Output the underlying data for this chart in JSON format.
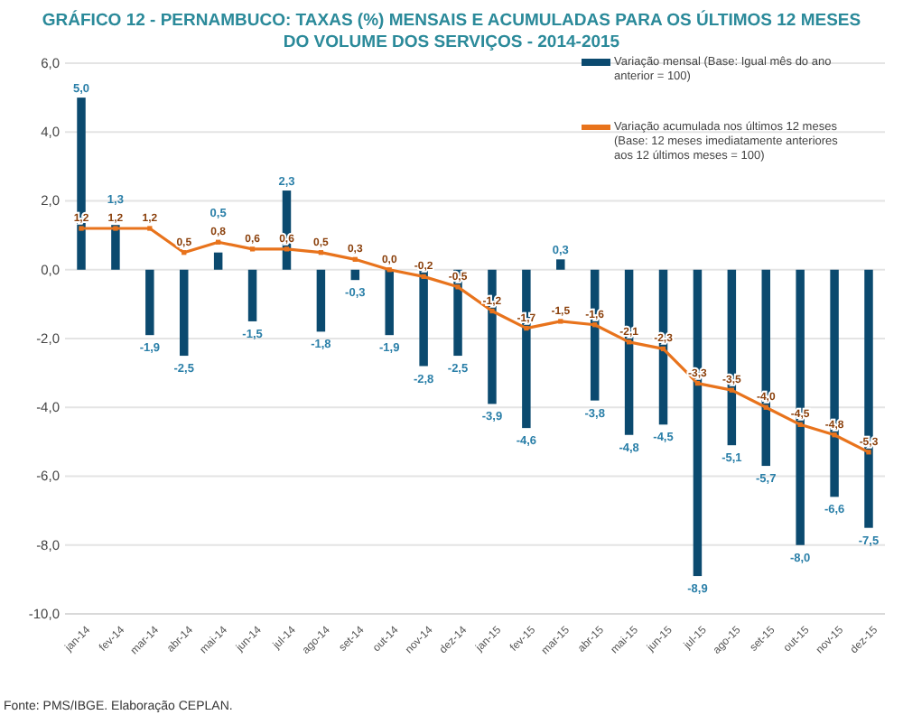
{
  "chart_data": {
    "type": "bar",
    "title": "GRÁFICO 12 - PERNAMBUCO: TAXAS (%) MENSAIS E ACUMULADAS PARA OS ÚLTIMOS 12 MESES DO VOLUME DOS SERVIÇOS - 2014-2015",
    "categories": [
      "jan-14",
      "fev-14",
      "mar-14",
      "abr-14",
      "mai-14",
      "jun-14",
      "jul-14",
      "ago-14",
      "set-14",
      "out-14",
      "nov-14",
      "dez-14",
      "jan-15",
      "fev-15",
      "mar-15",
      "abr-15",
      "mai-15",
      "jun-15",
      "jul-15",
      "ago-15",
      "set-15",
      "out-15",
      "nov-15",
      "dez-15"
    ],
    "series": [
      {
        "name": "Variação mensal (Base: Igual mês do ano anterior = 100)",
        "color": "#0b4a6f",
        "values": [
          5.0,
          1.3,
          -1.9,
          -2.5,
          0.5,
          -1.5,
          2.3,
          -1.8,
          -0.3,
          -1.9,
          -2.8,
          -2.5,
          -3.9,
          -4.6,
          0.3,
          -3.8,
          -4.8,
          -4.5,
          -8.9,
          -5.1,
          -5.7,
          -8.0,
          -6.6,
          -7.5
        ],
        "value_labels": [
          "5,0",
          "1,3",
          "-1,9",
          "-2,5",
          "0,5",
          "-1,5",
          "2,3",
          "-1,8",
          "-0,3",
          "-1,9",
          "-2,8",
          "-2,5",
          "-3,9",
          "-4,6",
          "0,3",
          "-3,8",
          "-4,8",
          "-4,5",
          "-8,9",
          "-5,1",
          "-5,7",
          "-8,0",
          "-6,6",
          "-7,5"
        ]
      },
      {
        "name": "Variação acumulada nos últimos 12 meses (Base: 12 meses imediatamente anteriores aos 12 últimos meses = 100)",
        "type": "line",
        "color": "#e8731c",
        "values": [
          1.2,
          1.2,
          1.2,
          0.5,
          0.8,
          0.6,
          0.6,
          0.5,
          0.3,
          0.0,
          -0.2,
          -0.5,
          -1.2,
          -1.7,
          -1.5,
          -1.6,
          -2.1,
          -2.3,
          -3.3,
          -3.5,
          -4.0,
          -4.5,
          -4.8,
          -5.3
        ],
        "value_labels": [
          "1,2",
          "1,2",
          "1,2",
          "0,5",
          "0,8",
          "0,6",
          "0,6",
          "0,5",
          "0,3",
          "0,0",
          "-0,2",
          "-0,5",
          "-1,2",
          "-1,7",
          "-1,5",
          "-1,6",
          "-2,1",
          "-2,3",
          "-3,3",
          "-3,5",
          "-4,0",
          "-4,5",
          "-4,8",
          "-5,3"
        ]
      }
    ],
    "ylim": [
      -10,
      6
    ],
    "yticks": [
      {
        "value": -10,
        "label": "-10,0"
      },
      {
        "value": -8,
        "label": "-8,0"
      },
      {
        "value": -6,
        "label": "-6,0"
      },
      {
        "value": -4,
        "label": "-4,0"
      },
      {
        "value": -2,
        "label": "-2,0"
      },
      {
        "value": 0,
        "label": "0,0"
      },
      {
        "value": 2,
        "label": "2,0"
      },
      {
        "value": 4,
        "label": "4,0"
      },
      {
        "value": 6,
        "label": "6,0"
      }
    ],
    "grid": "y",
    "legend": "top right",
    "marker": "square",
    "annotations": [
      "Fonte: PMS/IBGE. Elaboração CEPLAN."
    ]
  }
}
